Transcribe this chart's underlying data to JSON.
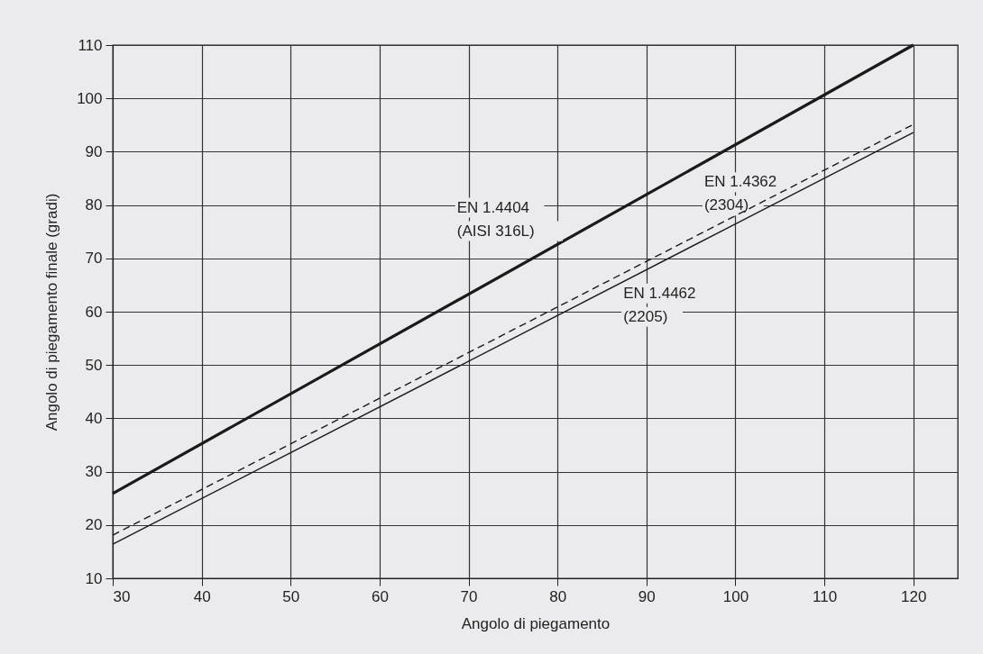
{
  "chart_data": {
    "type": "line",
    "xlabel": "Angolo di piegamento",
    "ylabel": "Angolo di piegamento finale (gradi)",
    "x": [
      30,
      120
    ],
    "series": [
      {
        "name": "EN 1.4404 (AISI 316L)",
        "color": "#1a1a1a",
        "values": [
          25.9,
          110
        ],
        "line_style": "solid"
      },
      {
        "name": "EN 1.4362 (2304)",
        "color": "#1a1a1a",
        "values": [
          18.1,
          95.1
        ],
        "line_style": "dashed"
      },
      {
        "name": "EN 1.4462 (2205)",
        "color": "#1a1a1a",
        "values": [
          16.4,
          93.6
        ],
        "line_style": "solid"
      }
    ],
    "xlim": [
      30,
      125
    ],
    "xticks": [
      30,
      40,
      50,
      60,
      70,
      80,
      90,
      100,
      110,
      120
    ],
    "ylim": [
      10,
      110
    ],
    "yticks": [
      10,
      20,
      30,
      40,
      50,
      60,
      70,
      80,
      90,
      100,
      110
    ],
    "grid": true,
    "legend": false,
    "marker": "none"
  }
}
